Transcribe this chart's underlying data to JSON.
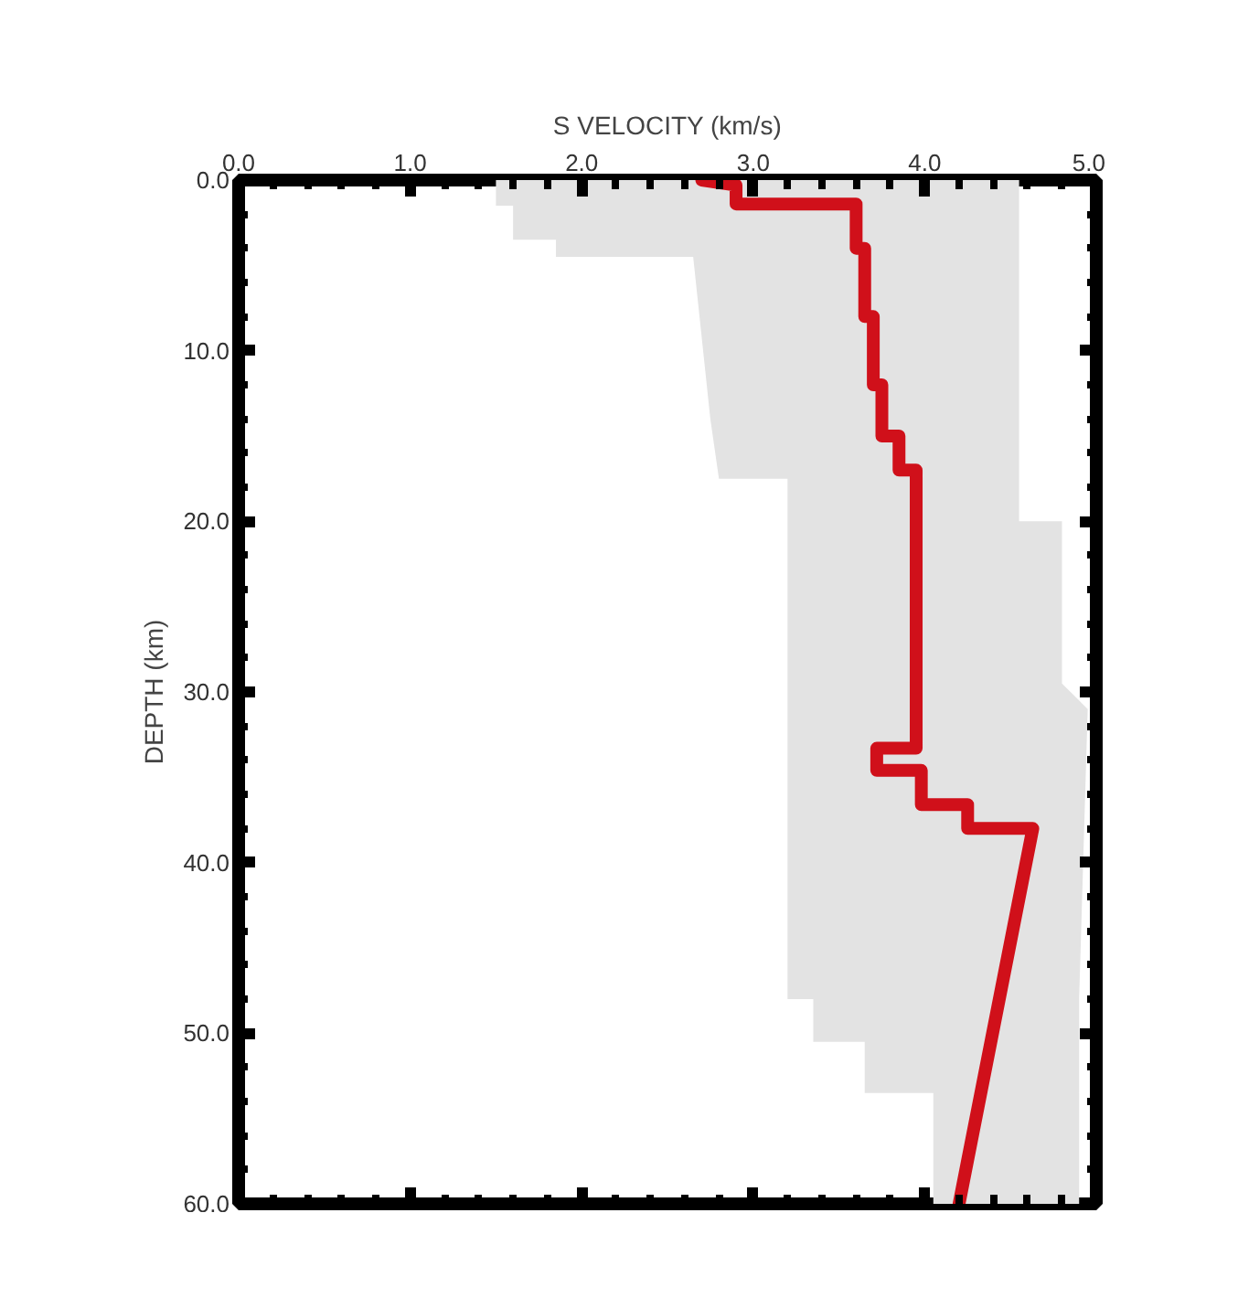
{
  "chart_data": {
    "type": "line",
    "xlabel": "S VELOCITY (km/s)",
    "ylabel": "DEPTH (km)",
    "xlim": [
      0,
      5
    ],
    "ylim": [
      60,
      0
    ],
    "xticks": [
      {
        "value": 0,
        "label": "0.0"
      },
      {
        "value": 1,
        "label": "1.0"
      },
      {
        "value": 2,
        "label": "2.0"
      },
      {
        "value": 3,
        "label": "3.0"
      },
      {
        "value": 4,
        "label": "4.0"
      },
      {
        "value": 5,
        "label": "5.0"
      }
    ],
    "yticks": [
      {
        "value": 0,
        "label": "0.0"
      },
      {
        "value": 10,
        "label": "10.0"
      },
      {
        "value": 20,
        "label": "20.0"
      },
      {
        "value": 30,
        "label": "30.0"
      },
      {
        "value": 40,
        "label": "40.0"
      },
      {
        "value": 50,
        "label": "50.0"
      },
      {
        "value": 60,
        "label": "60.0"
      }
    ],
    "grid": false,
    "marker": "none",
    "line_style": "solid",
    "series": [
      {
        "type": "area",
        "color": "#e3e3e3",
        "x": [
          1.5,
          1.5,
          1.6,
          1.6,
          1.85,
          1.85,
          2.65,
          2.75,
          2.8,
          3.2,
          3.2,
          3.2,
          3.2,
          3.2,
          3.2,
          3.35,
          3.35,
          3.65,
          3.65,
          4.05,
          4.05,
          4.9,
          4.9,
          4.9,
          4.9,
          4.9,
          4.9,
          4.9,
          4.95,
          4.8,
          4.8,
          4.55,
          4.55,
          4.55,
          4.55,
          4.55,
          4.55,
          4.55,
          4.55,
          4.55,
          4.55,
          4.55
        ],
        "values": [
          0,
          1.5,
          1.5,
          3.5,
          3.5,
          4.5,
          4.5,
          14,
          17.5,
          17.5,
          20,
          20,
          29.5,
          31,
          48,
          48,
          50.5,
          50.5,
          53.5,
          53.5,
          60,
          60,
          53.5,
          53.5,
          50.5,
          50.5,
          48,
          48,
          31,
          29.5,
          20,
          20,
          17.5,
          17.5,
          14,
          4.5,
          4.5,
          3.5,
          3.5,
          1.5,
          1.5,
          0
        ]
      },
      {
        "color": "#d0101a",
        "x": [
          2.7,
          2.9,
          2.9,
          3.6,
          3.6,
          3.65,
          3.65,
          3.7,
          3.7,
          3.75,
          3.75,
          3.85,
          3.85,
          3.95,
          3.95,
          3.72,
          3.72,
          3.98,
          3.98,
          4.25,
          4.25,
          4.63,
          4.2
        ],
        "values": [
          0,
          0.3,
          1.4,
          1.4,
          4,
          4,
          8,
          8,
          12,
          12,
          15,
          15,
          17,
          17,
          33.3,
          33.3,
          34.6,
          34.6,
          36.6,
          36.6,
          38,
          38,
          60
        ]
      }
    ]
  }
}
